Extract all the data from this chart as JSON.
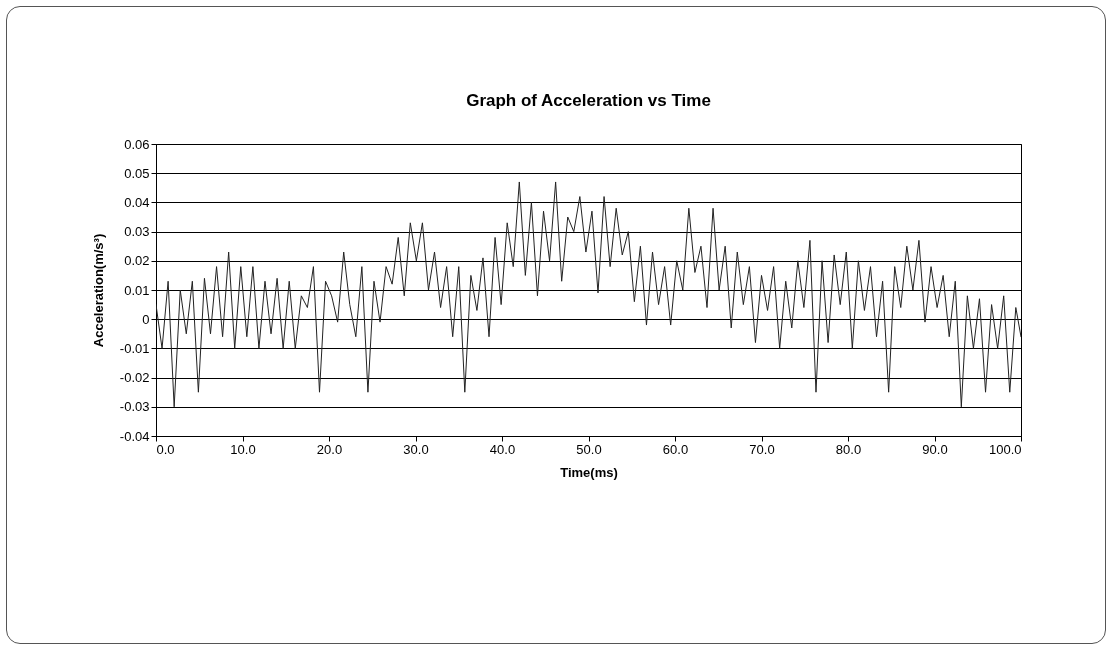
{
  "chart_data": {
    "type": "line",
    "title": "Graph of Acceleration vs Time",
    "xlabel": "Time(ms)",
    "ylabel": "Acceleration(m/s³)",
    "x": [
      0,
      0.7,
      1.4,
      2.1,
      2.8,
      3.5,
      4.2,
      4.9,
      5.6,
      6.3,
      7,
      7.7,
      8.4,
      9.1,
      9.8,
      10.5,
      11.2,
      11.9,
      12.6,
      13.3,
      14,
      14.7,
      15.4,
      16.1,
      16.8,
      17.5,
      18.2,
      18.9,
      19.6,
      20.3,
      21,
      21.7,
      22.4,
      23.1,
      23.8,
      24.5,
      25.2,
      25.9,
      26.6,
      27.3,
      28,
      28.7,
      29.4,
      30.1,
      30.8,
      31.5,
      32.2,
      32.9,
      33.6,
      34.3,
      35,
      35.7,
      36.4,
      37.1,
      37.8,
      38.5,
      39.2,
      39.9,
      40.6,
      41.3,
      42,
      42.7,
      43.4,
      44.1,
      44.8,
      45.5,
      46.2,
      46.9,
      47.6,
      48.3,
      49,
      49.7,
      50.4,
      51.1,
      51.8,
      52.5,
      53.2,
      53.9,
      54.6,
      55.3,
      56,
      56.7,
      57.4,
      58.1,
      58.8,
      59.5,
      60.2,
      60.9,
      61.6,
      62.3,
      63,
      63.7,
      64.4,
      65.1,
      65.8,
      66.5,
      67.2,
      67.9,
      68.6,
      69.3,
      70,
      70.7,
      71.4,
      72.1,
      72.8,
      73.5,
      74.2,
      74.9,
      75.6,
      76.3,
      77,
      77.7,
      78.4,
      79.1,
      79.8,
      80.5,
      81.2,
      81.9,
      82.6,
      83.3,
      84,
      84.7,
      85.4,
      86.1,
      86.8,
      87.5,
      88.2,
      88.9,
      89.6,
      90.3,
      91,
      91.7,
      92.4,
      93.1,
      93.8,
      94.5,
      95.2,
      95.9,
      96.6,
      97.3,
      98,
      98.7,
      99.4,
      100
    ],
    "series": [
      {
        "color": "#222222",
        "values": [
          0.005,
          -0.01,
          0.013,
          -0.03,
          0.01,
          -0.005,
          0.013,
          -0.025,
          0.014,
          -0.005,
          0.018,
          -0.006,
          0.023,
          -0.01,
          0.018,
          -0.006,
          0.018,
          -0.01,
          0.013,
          -0.005,
          0.014,
          -0.01,
          0.013,
          -0.01,
          0.008,
          0.004,
          0.018,
          -0.025,
          0.013,
          0.008,
          -0.001,
          0.023,
          0.005,
          -0.006,
          0.018,
          -0.025,
          0.013,
          -0.001,
          0.018,
          0.012,
          0.028,
          0.008,
          0.033,
          0.02,
          0.033,
          0.01,
          0.023,
          0.004,
          0.018,
          -0.006,
          0.018,
          -0.025,
          0.015,
          0.003,
          0.021,
          -0.006,
          0.028,
          0.005,
          0.033,
          0.018,
          0.047,
          0.015,
          0.04,
          0.008,
          0.037,
          0.02,
          0.047,
          0.013,
          0.035,
          0.03,
          0.042,
          0.023,
          0.037,
          0.009,
          0.042,
          0.018,
          0.038,
          0.022,
          0.03,
          0.006,
          0.025,
          -0.002,
          0.023,
          0.005,
          0.018,
          -0.002,
          0.02,
          0.01,
          0.038,
          0.016,
          0.025,
          0.004,
          0.038,
          0.01,
          0.025,
          -0.003,
          0.023,
          0.005,
          0.018,
          -0.008,
          0.015,
          0.003,
          0.018,
          -0.01,
          0.013,
          -0.003,
          0.02,
          0.004,
          0.027,
          -0.025,
          0.02,
          -0.008,
          0.022,
          0.005,
          0.023,
          -0.01,
          0.02,
          0.003,
          0.018,
          -0.006,
          0.013,
          -0.025,
          0.018,
          0.004,
          0.025,
          0.01,
          0.027,
          -0.001,
          0.018,
          0.004,
          0.015,
          -0.006,
          0.013,
          -0.03,
          0.008,
          -0.01,
          0.007,
          -0.025,
          0.005,
          -0.01,
          0.008,
          -0.025,
          0.004,
          -0.006
        ]
      }
    ],
    "xlim": [
      0,
      100
    ],
    "xticks": [
      {
        "value": 0,
        "label": "0.0"
      },
      {
        "value": 10,
        "label": "10.0"
      },
      {
        "value": 20,
        "label": "20.0"
      },
      {
        "value": 30,
        "label": "30.0"
      },
      {
        "value": 40,
        "label": "40.0"
      },
      {
        "value": 50,
        "label": "50.0"
      },
      {
        "value": 60,
        "label": "60.0"
      },
      {
        "value": 70,
        "label": "70.0"
      },
      {
        "value": 80,
        "label": "80.0"
      },
      {
        "value": 90,
        "label": "90.0"
      },
      {
        "value": 100,
        "label": "100.0"
      }
    ],
    "ylim": [
      -0.04,
      0.06
    ],
    "yticks": [
      -0.04,
      -0.03,
      -0.02,
      -0.01,
      0,
      0.01,
      0.02,
      0.03,
      0.04,
      0.05,
      0.06
    ],
    "grid": "y",
    "marker": "none",
    "line_style": "solid"
  }
}
